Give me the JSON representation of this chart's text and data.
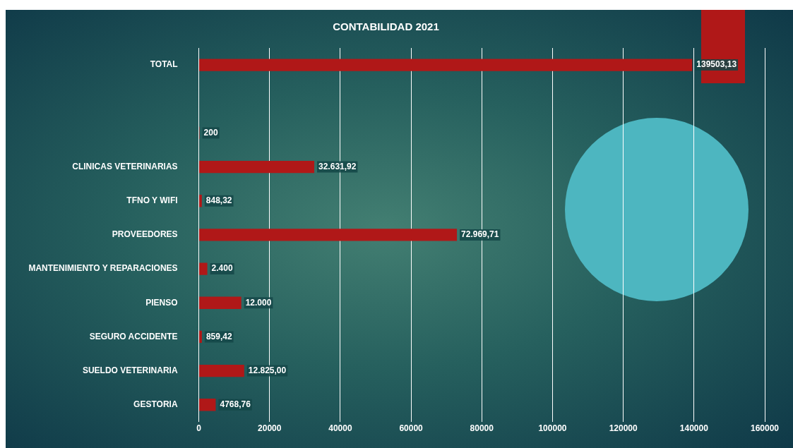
{
  "chart_data": {
    "type": "bar",
    "orientation": "horizontal",
    "title": "CONTABILIDAD 2021",
    "categories": [
      "TOTAL",
      null,
      null,
      "CLINICAS VETERINARIAS",
      "TFNO Y WIFI",
      "PROVEEDORES",
      "MANTENIMIENTO Y REPARACIONES",
      "PIENSO",
      "SEGURO ACCIDENTE",
      "SUELDO VETERINARIA",
      "GESTORIA"
    ],
    "values": [
      139503.13,
      null,
      200,
      32631.92,
      848.32,
      72969.71,
      2400,
      12000,
      859.42,
      12825.0,
      4768.76
    ],
    "value_labels": [
      "139503,13",
      null,
      "200",
      "32.631,92",
      "848,32",
      "72.969,71",
      "2.400",
      "12.000",
      "859,42",
      "12.825,00",
      "4768,76"
    ],
    "color": "#b01818",
    "xlim": [
      0,
      160000
    ],
    "xticks": [
      0,
      20000,
      40000,
      60000,
      80000,
      100000,
      120000,
      140000,
      160000
    ],
    "grid": "x"
  }
}
